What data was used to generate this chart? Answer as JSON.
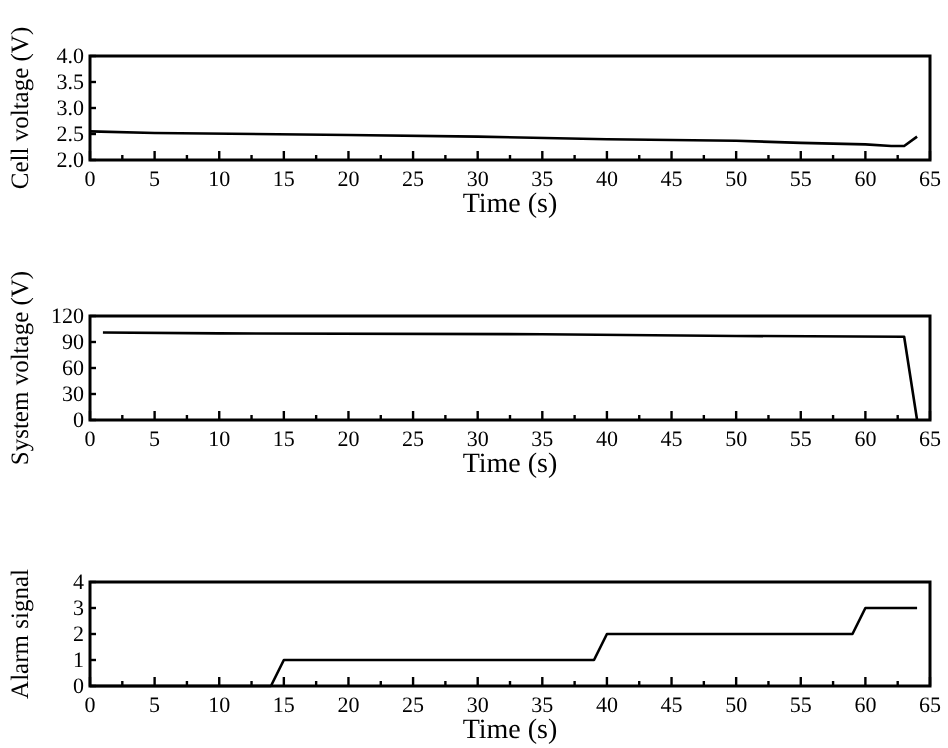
{
  "chart_data": [
    {
      "type": "line",
      "xlabel": "Time (s)",
      "ylabel": "Cell voltage (V)",
      "xlim": [
        0,
        65
      ],
      "xticks": [
        0,
        {
          "value": 2.5,
          "label": null
        },
        5,
        {
          "value": 7.5,
          "label": null
        },
        10,
        {
          "value": 12.5,
          "label": null
        },
        15,
        {
          "value": 17.5,
          "label": null
        },
        20,
        {
          "value": 22.5,
          "label": null
        },
        25,
        {
          "value": 27.5,
          "label": null
        },
        30,
        {
          "value": 32.5,
          "label": null
        },
        35,
        {
          "value": 37.5,
          "label": null
        },
        40,
        {
          "value": 42.5,
          "label": null
        },
        45,
        {
          "value": 47.5,
          "label": null
        },
        50,
        {
          "value": 52.5,
          "label": null
        },
        55,
        {
          "value": 57.5,
          "label": null
        },
        60,
        {
          "value": 62.5,
          "label": null
        },
        65
      ],
      "ylim": [
        2,
        4
      ],
      "yticks": [
        {
          "value": 2,
          "label": "2.0"
        },
        2.5,
        {
          "value": 3,
          "label": "3.0"
        },
        3.5,
        {
          "value": 4,
          "label": "4.0"
        }
      ],
      "grid": false,
      "series": [
        {
          "color": "#000000",
          "x": [
            0,
            5,
            20,
            30,
            40,
            50,
            55,
            60,
            62,
            63,
            64
          ],
          "values": [
            2.55,
            2.52,
            2.48,
            2.45,
            2.4,
            2.37,
            2.33,
            2.3,
            2.27,
            2.27,
            2.45
          ]
        }
      ]
    },
    {
      "type": "line",
      "xlabel": "Time (s)",
      "ylabel": "System voltage (V)",
      "xlim": [
        0,
        65
      ],
      "xticks": [
        0,
        {
          "value": 2.5,
          "label": null
        },
        5,
        {
          "value": 7.5,
          "label": null
        },
        10,
        {
          "value": 12.5,
          "label": null
        },
        15,
        {
          "value": 17.5,
          "label": null
        },
        20,
        {
          "value": 22.5,
          "label": null
        },
        25,
        {
          "value": 27.5,
          "label": null
        },
        30,
        {
          "value": 32.5,
          "label": null
        },
        35,
        {
          "value": 37.5,
          "label": null
        },
        40,
        {
          "value": 42.5,
          "label": null
        },
        45,
        {
          "value": 47.5,
          "label": null
        },
        50,
        {
          "value": 52.5,
          "label": null
        },
        55,
        {
          "value": 57.5,
          "label": null
        },
        60,
        {
          "value": 62.5,
          "label": null
        },
        65
      ],
      "ylim": [
        0,
        120
      ],
      "yticks": [
        0,
        30,
        60,
        90,
        120
      ],
      "grid": false,
      "series": [
        {
          "color": "#000000",
          "x": [
            1,
            10,
            35,
            50,
            63,
            64
          ],
          "values": [
            101,
            100,
            99,
            97,
            96,
            0
          ]
        }
      ]
    },
    {
      "type": "line",
      "xlabel": "Time (s)",
      "ylabel": "Alarm signal",
      "xlim": [
        0,
        65
      ],
      "xticks": [
        0,
        {
          "value": 2.5,
          "label": null
        },
        5,
        {
          "value": 7.5,
          "label": null
        },
        10,
        {
          "value": 12.5,
          "label": null
        },
        15,
        {
          "value": 17.5,
          "label": null
        },
        20,
        {
          "value": 22.5,
          "label": null
        },
        25,
        {
          "value": 27.5,
          "label": null
        },
        30,
        {
          "value": 32.5,
          "label": null
        },
        35,
        {
          "value": 37.5,
          "label": null
        },
        40,
        {
          "value": 42.5,
          "label": null
        },
        45,
        {
          "value": 47.5,
          "label": null
        },
        50,
        {
          "value": 52.5,
          "label": null
        },
        55,
        {
          "value": 57.5,
          "label": null
        },
        60,
        {
          "value": 62.5,
          "label": null
        },
        65
      ],
      "ylim": [
        0,
        4
      ],
      "yticks": [
        0,
        1,
        2,
        3,
        4
      ],
      "grid": false,
      "series": [
        {
          "color": "#000000",
          "x": [
            0,
            14,
            15,
            39,
            40,
            59,
            60,
            64
          ],
          "values": [
            0,
            0,
            1,
            1,
            2,
            2,
            3,
            3
          ]
        }
      ]
    }
  ]
}
